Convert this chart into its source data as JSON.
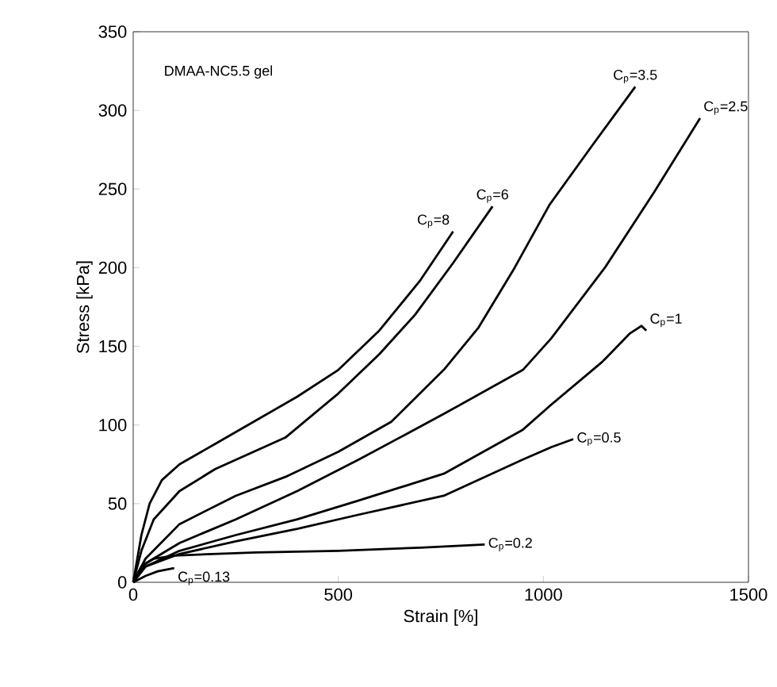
{
  "chart_data": {
    "type": "line",
    "xlabel": "Strain [%]",
    "ylabel": "Stress [kPa]",
    "annotations": [
      "DMAA-NC5.5 gel"
    ],
    "xlim": [
      0,
      1500
    ],
    "ylim": [
      0,
      350
    ],
    "xticks": [
      0,
      500,
      1000,
      1500
    ],
    "yticks": [
      0,
      50,
      100,
      150,
      200,
      250,
      300,
      350
    ],
    "grid": false,
    "marker": "none",
    "line_style": "solid",
    "series": [
      {
        "name": "C$_{p}$=8",
        "color": "#000000",
        "x": [
          0,
          20,
          40,
          70,
          113,
          200,
          300,
          400,
          500,
          600,
          700,
          780
        ],
        "values": [
          0,
          30,
          50,
          65,
          75,
          88,
          103,
          118,
          135,
          160,
          192,
          223
        ]
      },
      {
        "name": "C$_{p}$=6",
        "color": "#000000",
        "x": [
          0,
          20,
          50,
          113,
          200,
          371,
          500,
          600,
          687,
          780,
          876
        ],
        "values": [
          0,
          20,
          40,
          58,
          72,
          92,
          120,
          145,
          170,
          203,
          239
        ]
      },
      {
        "name": "C$_{p}$=3.5",
        "color": "#000000",
        "x": [
          0,
          30,
          113,
          250,
          371,
          500,
          629,
          757,
          842,
          930,
          1015,
          1120,
          1224
        ],
        "values": [
          0,
          15,
          37,
          55,
          67,
          83,
          102,
          135,
          162,
          200,
          240,
          278,
          315
        ]
      },
      {
        "name": "C$_{p}$=2.5",
        "color": "#000000",
        "x": [
          0,
          30,
          113,
          250,
          400,
          550,
          757,
          950,
          1019,
          1150,
          1270,
          1382
        ],
        "values": [
          0,
          12,
          25,
          40,
          58,
          78,
          107,
          135,
          155,
          200,
          248,
          295
        ]
      },
      {
        "name": "C$_{p}$=1",
        "color": "#000000",
        "x": [
          0,
          30,
          113,
          250,
          400,
          550,
          757,
          950,
          1015,
          1143,
          1210,
          1239,
          1251
        ],
        "values": [
          0,
          10,
          20,
          30,
          40,
          52,
          69,
          97,
          112,
          140,
          158,
          163,
          160
        ]
      },
      {
        "name": "C$_{p}$=0.5",
        "color": "#000000",
        "x": [
          0,
          30,
          113,
          250,
          400,
          550,
          757,
          950,
          1020,
          1073
        ],
        "values": [
          0,
          10,
          18,
          26,
          34,
          43,
          55,
          78,
          86,
          91
        ]
      },
      {
        "name": "C$_{p}$=0.2",
        "color": "#000000",
        "x": [
          0,
          20,
          50,
          100,
          300,
          500,
          700,
          857
        ],
        "values": [
          0,
          10,
          15,
          17,
          19,
          20,
          22,
          24
        ]
      },
      {
        "name": "C$_{p}$=0.13",
        "color": "#000000",
        "x": [
          0,
          30,
          60,
          100
        ],
        "values": [
          0,
          4,
          7,
          9
        ]
      }
    ]
  }
}
